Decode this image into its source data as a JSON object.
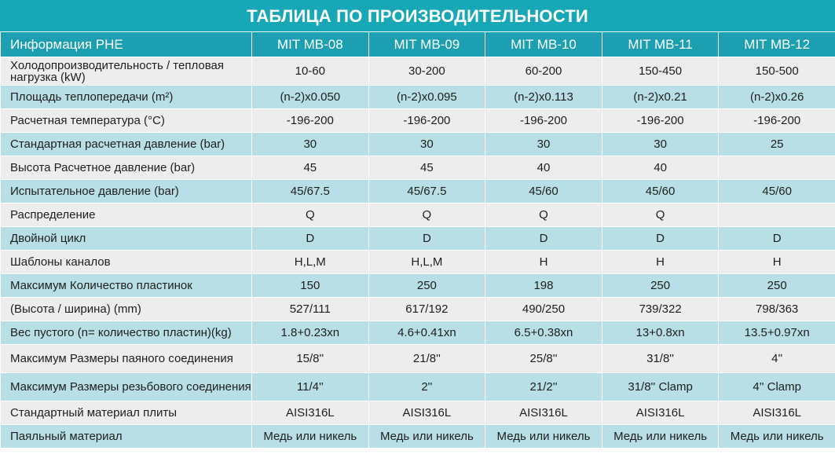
{
  "title": "ТАБЛИЦА ПО ПРОИЗВОДИТЕЛЬНОСТИ",
  "colors": {
    "header": "#1c9fb1",
    "title": "#17a7b7",
    "row_light": "#ededed",
    "row_blue": "#b9dfe6"
  },
  "header": {
    "first": "Информация PHE",
    "models": [
      "MIT MB-08",
      "MIT MB-09",
      "MIT MB-10",
      "MIT MB-11",
      "MIT MB-12"
    ]
  },
  "rows": [
    {
      "label": "Холодопроизводительность / тепловая нагрузка (kW)",
      "values": [
        "10-60",
        "30-200",
        "60-200",
        "150-450",
        "150-500"
      ]
    },
    {
      "label": "Площадь теплопередачи (m²)",
      "values": [
        "(n-2)x0.050",
        "(n-2)x0.095",
        "(n-2)x0.113",
        "(n-2)x0.21",
        "(n-2)x0.26"
      ]
    },
    {
      "label": "Расчетная температура (°C)",
      "values": [
        "-196-200",
        "-196-200",
        "-196-200",
        "-196-200",
        "-196-200"
      ]
    },
    {
      "label": "Стандартная расчетная давление (bar)",
      "values": [
        "30",
        "30",
        "30",
        "30",
        "25"
      ]
    },
    {
      "label": "Высота Расчетное давление (bar)",
      "values": [
        "45",
        "45",
        "40",
        "40",
        ""
      ]
    },
    {
      "label": "Испытательное давление (bar)",
      "values": [
        "45/67.5",
        "45/67.5",
        "45/60",
        "45/60",
        "45/60"
      ]
    },
    {
      "label": "Распределение",
      "values": [
        "Q",
        "Q",
        "Q",
        "Q",
        ""
      ]
    },
    {
      "label": "Двойной цикл",
      "values": [
        "D",
        "D",
        "D",
        "D",
        "D"
      ]
    },
    {
      "label": "Шаблоны каналов",
      "values": [
        "H,L,M",
        "H,L,M",
        "H",
        "H",
        "H"
      ]
    },
    {
      "label": "Максимум Количество пластинок",
      "values": [
        "150",
        "250",
        "198",
        "250",
        "250"
      ]
    },
    {
      "label": "(Высота / ширина) (mm)",
      "values": [
        "527/111",
        "617/192",
        "490/250",
        "739/322",
        "798/363"
      ]
    },
    {
      "label": "Вес пустого (n= количество пластин)(kg)",
      "values": [
        "1.8+0.23xn",
        "4.6+0.41xn",
        "6.5+0.38xn",
        "13+0.8xn",
        "13.5+0.97xn"
      ]
    },
    {
      "label": "Максимум Размеры паяного соединения",
      "values": [
        "15/8''",
        "21/8''",
        "25/8''",
        "31/8''",
        "4''"
      ]
    },
    {
      "label": "Максимум Размеры резьбового соединения",
      "values": [
        "11/4''",
        "2''",
        "21/2''",
        "31/8'' Clamp",
        "4'' Clamp"
      ]
    },
    {
      "label": "Стандартный материал плиты",
      "values": [
        "AISI316L",
        "AISI316L",
        "AISI316L",
        "AISI316L",
        "AISI316L"
      ]
    },
    {
      "label": "Паяльный материал",
      "values": [
        "Медь или никель",
        "Медь или никель",
        "Медь или никель",
        "Медь или никель",
        "Медь или никель"
      ]
    }
  ]
}
